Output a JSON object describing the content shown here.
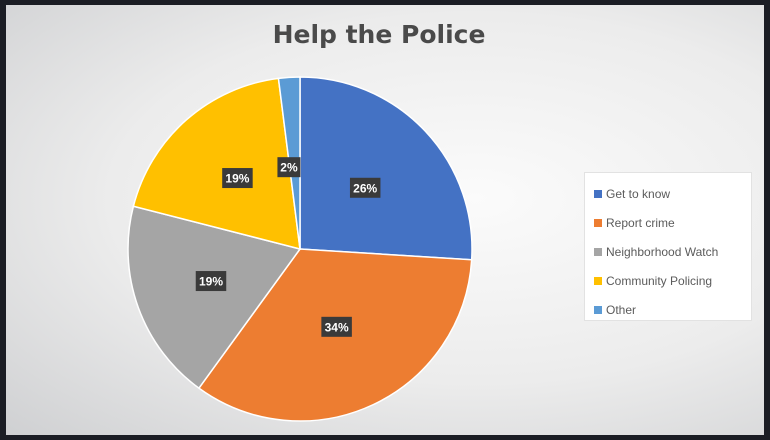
{
  "chart_data": {
    "type": "pie",
    "title": "Help the Police",
    "categories": [
      "Get to know",
      "Report crime",
      "Neighborhood Watch",
      "Community Policing",
      "Other"
    ],
    "values": [
      26,
      34,
      19,
      19,
      2
    ],
    "labels": [
      "26%",
      "34%",
      "19%",
      "19%",
      "2%"
    ],
    "colors": [
      "#4472c4",
      "#ed7d31",
      "#a5a5a5",
      "#ffc000",
      "#5b9bd5"
    ],
    "start_angle_deg": 0,
    "direction": "clockwise",
    "legend_position": "right"
  }
}
